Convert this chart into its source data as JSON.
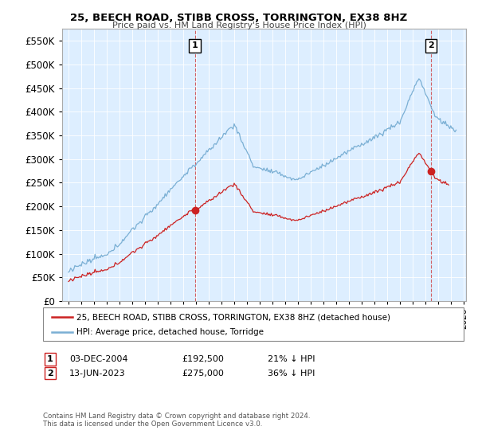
{
  "title": "25, BEECH ROAD, STIBB CROSS, TORRINGTON, EX38 8HZ",
  "subtitle": "Price paid vs. HM Land Registry's House Price Index (HPI)",
  "legend_line1": "25, BEECH ROAD, STIBB CROSS, TORRINGTON, EX38 8HZ (detached house)",
  "legend_line2": "HPI: Average price, detached house, Torridge",
  "annotation1": {
    "num": "1",
    "date": "03-DEC-2004",
    "price": "£192,500",
    "hpi": "21% ↓ HPI",
    "x_year": 2004.92
  },
  "annotation2": {
    "num": "2",
    "date": "13-JUN-2023",
    "price": "£275,000",
    "hpi": "36% ↓ HPI",
    "x_year": 2023.45
  },
  "footer": "Contains HM Land Registry data © Crown copyright and database right 2024.\nThis data is licensed under the Open Government Licence v3.0.",
  "sale1_year": 2004.92,
  "sale1_price": 192500,
  "sale2_year": 2023.45,
  "sale2_price": 275000,
  "ylim": [
    0,
    575000
  ],
  "xlim_start": 1994.5,
  "xlim_end": 2026.2,
  "hpi_color": "#7aafd4",
  "sale_color": "#cc2222",
  "vline_color": "#cc2222",
  "background_color": "#ffffff",
  "plot_bg_color": "#ddeeff",
  "grid_color": "#ffffff"
}
